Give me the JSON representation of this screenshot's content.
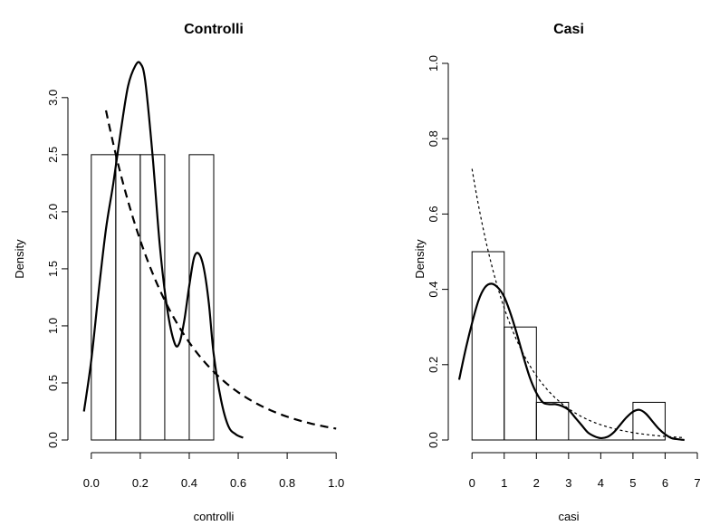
{
  "chart_data": [
    {
      "type": "histogram",
      "title": "Controlli",
      "xlabel": "controlli",
      "ylabel": "Density",
      "xlim": [
        -0.04,
        1.04
      ],
      "ylim": [
        0,
        3.3
      ],
      "x_ticks": [
        "0.0",
        "0.2",
        "0.4",
        "0.6",
        "0.8",
        "1.0"
      ],
      "x_tick_values": [
        0,
        0.2,
        0.4,
        0.6,
        0.8,
        1.0
      ],
      "y_ticks": [
        "0.0",
        "0.5",
        "1.0",
        "1.5",
        "2.0",
        "2.5",
        "3.0"
      ],
      "y_tick_values": [
        0,
        0.5,
        1.0,
        1.5,
        2.0,
        2.5,
        3.0
      ],
      "bins": [
        {
          "x0": 0.0,
          "x1": 0.1,
          "density": 2.5
        },
        {
          "x0": 0.1,
          "x1": 0.2,
          "density": 2.5
        },
        {
          "x0": 0.2,
          "x1": 0.3,
          "density": 2.5
        },
        {
          "x0": 0.3,
          "x1": 0.4,
          "density": 0
        },
        {
          "x0": 0.4,
          "x1": 0.5,
          "density": 2.5
        }
      ],
      "kde": {
        "x": [
          -0.03,
          0.0,
          0.03,
          0.06,
          0.09,
          0.12,
          0.15,
          0.18,
          0.2,
          0.22,
          0.25,
          0.28,
          0.31,
          0.34,
          0.36,
          0.38,
          0.4,
          0.42,
          0.44,
          0.46,
          0.48,
          0.5,
          0.53,
          0.56,
          0.59,
          0.62
        ],
        "y": [
          0.25,
          0.7,
          1.3,
          1.85,
          2.25,
          2.7,
          3.1,
          3.28,
          3.3,
          3.15,
          2.5,
          1.7,
          1.15,
          0.85,
          0.85,
          1.05,
          1.35,
          1.6,
          1.63,
          1.5,
          1.2,
          0.75,
          0.35,
          0.12,
          0.05,
          0.02
        ],
        "line": "solid"
      },
      "exp_fit": {
        "rate": 3.58,
        "x_start": 0.06,
        "x_end": 1.0,
        "line": "dashed"
      }
    },
    {
      "type": "histogram",
      "title": "Casi",
      "xlabel": "casi",
      "ylabel": "Density",
      "xlim": [
        -0.4,
        7.0
      ],
      "ylim": [
        0,
        1.0
      ],
      "x_ticks": [
        "0",
        "1",
        "2",
        "3",
        "4",
        "5",
        "6",
        "7"
      ],
      "x_tick_values": [
        0,
        1,
        2,
        3,
        4,
        5,
        6,
        7
      ],
      "y_ticks": [
        "0.0",
        "0.2",
        "0.4",
        "0.6",
        "0.8",
        "1.0"
      ],
      "y_tick_values": [
        0,
        0.2,
        0.4,
        0.6,
        0.8,
        1.0
      ],
      "bins": [
        {
          "x0": 0,
          "x1": 1,
          "density": 0.5
        },
        {
          "x0": 1,
          "x1": 2,
          "density": 0.3
        },
        {
          "x0": 2,
          "x1": 3,
          "density": 0.1
        },
        {
          "x0": 3,
          "x1": 4,
          "density": 0
        },
        {
          "x0": 4,
          "x1": 5,
          "density": 0
        },
        {
          "x0": 5,
          "x1": 6,
          "density": 0.1
        }
      ],
      "kde": {
        "x": [
          -0.4,
          -0.2,
          0.0,
          0.2,
          0.4,
          0.6,
          0.8,
          1.0,
          1.2,
          1.4,
          1.6,
          1.8,
          2.0,
          2.2,
          2.4,
          2.6,
          2.8,
          3.0,
          3.2,
          3.4,
          3.6,
          3.8,
          4.0,
          4.2,
          4.4,
          4.6,
          4.8,
          5.0,
          5.2,
          5.4,
          5.6,
          5.8,
          6.0,
          6.2,
          6.4,
          6.6
        ],
        "y": [
          0.16,
          0.24,
          0.31,
          0.37,
          0.405,
          0.415,
          0.405,
          0.38,
          0.335,
          0.28,
          0.22,
          0.165,
          0.125,
          0.1,
          0.095,
          0.095,
          0.09,
          0.08,
          0.06,
          0.04,
          0.02,
          0.01,
          0.005,
          0.008,
          0.02,
          0.04,
          0.06,
          0.075,
          0.08,
          0.07,
          0.05,
          0.03,
          0.015,
          0.005,
          0.002,
          0.0
        ],
        "line": "solid"
      },
      "exp_fit": {
        "rate": 0.72,
        "x_start": 0.0,
        "x_end": 6.6,
        "line": "dotted"
      }
    }
  ]
}
